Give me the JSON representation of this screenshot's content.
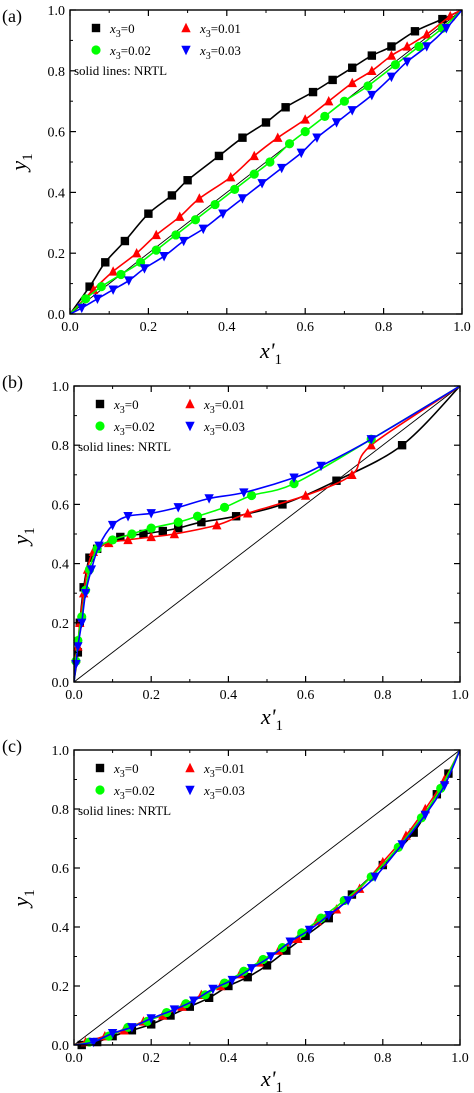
{
  "chart_data": [
    {
      "panel_label": "(a)",
      "type": "scatter",
      "xlabel": "x'1",
      "ylabel": "y1",
      "xlim": [
        0.0,
        1.0
      ],
      "ylim": [
        0.0,
        1.0
      ],
      "x_ticks": [
        "0.0",
        "0.2",
        "0.4",
        "0.6",
        "0.8",
        "1.0"
      ],
      "y_ticks": [
        "0.0",
        "0.2",
        "0.4",
        "0.6",
        "0.8",
        "1.0"
      ],
      "legend_note": "solid lines:  NRTL",
      "diagonal": true,
      "series": [
        {
          "name": "x3=0",
          "sub": "3",
          "val": "=0",
          "marker": "square",
          "color": "#000000",
          "points": [
            [
              0.05,
              0.09
            ],
            [
              0.09,
              0.17
            ],
            [
              0.14,
              0.24
            ],
            [
              0.2,
              0.33
            ],
            [
              0.26,
              0.39
            ],
            [
              0.3,
              0.44
            ],
            [
              0.38,
              0.52
            ],
            [
              0.44,
              0.58
            ],
            [
              0.5,
              0.63
            ],
            [
              0.55,
              0.68
            ],
            [
              0.62,
              0.73
            ],
            [
              0.67,
              0.77
            ],
            [
              0.72,
              0.81
            ],
            [
              0.77,
              0.85
            ],
            [
              0.82,
              0.88
            ],
            [
              0.88,
              0.93
            ],
            [
              0.95,
              0.97
            ]
          ]
        },
        {
          "name": "x3=0.01",
          "sub": "3",
          "val": "=0.01",
          "marker": "triangle-up",
          "color": "#ff0000",
          "points": [
            [
              0.06,
              0.08
            ],
            [
              0.11,
              0.14
            ],
            [
              0.17,
              0.2
            ],
            [
              0.22,
              0.26
            ],
            [
              0.28,
              0.32
            ],
            [
              0.33,
              0.38
            ],
            [
              0.41,
              0.45
            ],
            [
              0.47,
              0.52
            ],
            [
              0.53,
              0.58
            ],
            [
              0.6,
              0.64
            ],
            [
              0.66,
              0.7
            ],
            [
              0.72,
              0.76
            ],
            [
              0.77,
              0.8
            ],
            [
              0.82,
              0.85
            ],
            [
              0.86,
              0.88
            ],
            [
              0.91,
              0.92
            ],
            [
              0.97,
              0.98
            ]
          ]
        },
        {
          "name": "x3=0.02",
          "sub": "3",
          "val": "=0.02",
          "marker": "circle",
          "color": "#00ff00",
          "points": [
            [
              0.04,
              0.05
            ],
            [
              0.08,
              0.09
            ],
            [
              0.13,
              0.13
            ],
            [
              0.18,
              0.17
            ],
            [
              0.22,
              0.21
            ],
            [
              0.27,
              0.26
            ],
            [
              0.32,
              0.31
            ],
            [
              0.37,
              0.36
            ],
            [
              0.42,
              0.41
            ],
            [
              0.47,
              0.46
            ],
            [
              0.51,
              0.5
            ],
            [
              0.56,
              0.56
            ],
            [
              0.6,
              0.6
            ],
            [
              0.65,
              0.65
            ],
            [
              0.7,
              0.7
            ],
            [
              0.76,
              0.75
            ],
            [
              0.83,
              0.82
            ],
            [
              0.89,
              0.88
            ],
            [
              0.95,
              0.94
            ]
          ]
        },
        {
          "name": "x3=0.03",
          "sub": "3",
          "val": "=0.03",
          "marker": "triangle-down",
          "color": "#0000ff",
          "points": [
            [
              0.03,
              0.02
            ],
            [
              0.07,
              0.05
            ],
            [
              0.11,
              0.08
            ],
            [
              0.15,
              0.11
            ],
            [
              0.19,
              0.15
            ],
            [
              0.24,
              0.19
            ],
            [
              0.29,
              0.24
            ],
            [
              0.34,
              0.28
            ],
            [
              0.39,
              0.33
            ],
            [
              0.44,
              0.38
            ],
            [
              0.49,
              0.43
            ],
            [
              0.54,
              0.48
            ],
            [
              0.59,
              0.53
            ],
            [
              0.63,
              0.58
            ],
            [
              0.68,
              0.63
            ],
            [
              0.72,
              0.67
            ],
            [
              0.77,
              0.72
            ],
            [
              0.82,
              0.78
            ],
            [
              0.86,
              0.83
            ],
            [
              0.91,
              0.88
            ],
            [
              0.96,
              0.94
            ]
          ]
        }
      ]
    },
    {
      "panel_label": "(b)",
      "type": "scatter",
      "xlabel": "x'1",
      "ylabel": "y1",
      "xlim": [
        0.0,
        1.0
      ],
      "ylim": [
        0.0,
        1.0
      ],
      "x_ticks": [
        "0.0",
        "0.2",
        "0.4",
        "0.6",
        "0.8",
        "1.0"
      ],
      "y_ticks": [
        "0.0",
        "0.2",
        "0.4",
        "0.6",
        "0.8",
        "1.0"
      ],
      "legend_note": "solid lines:  NRTL",
      "diagonal": true,
      "series": [
        {
          "name": "x3=0",
          "sub": "3",
          "val": "=0",
          "marker": "square",
          "color": "#000000",
          "points": [
            [
              0.01,
              0.1
            ],
            [
              0.015,
              0.2
            ],
            [
              0.025,
              0.32
            ],
            [
              0.04,
              0.42
            ],
            [
              0.06,
              0.45
            ],
            [
              0.12,
              0.49
            ],
            [
              0.18,
              0.5
            ],
            [
              0.23,
              0.51
            ],
            [
              0.27,
              0.52
            ],
            [
              0.33,
              0.54
            ],
            [
              0.42,
              0.56
            ],
            [
              0.54,
              0.6
            ],
            [
              0.68,
              0.68
            ],
            [
              0.85,
              0.8
            ]
          ]
        },
        {
          "name": "x3=0.01",
          "sub": "3",
          "val": "=0.01",
          "marker": "triangle-up",
          "color": "#ff0000",
          "points": [
            [
              0.005,
              0.08
            ],
            [
              0.01,
              0.12
            ],
            [
              0.015,
              0.2
            ],
            [
              0.025,
              0.3
            ],
            [
              0.035,
              0.38
            ],
            [
              0.05,
              0.44
            ],
            [
              0.09,
              0.47
            ],
            [
              0.14,
              0.48
            ],
            [
              0.2,
              0.49
            ],
            [
              0.26,
              0.5
            ],
            [
              0.37,
              0.53
            ],
            [
              0.45,
              0.57
            ],
            [
              0.6,
              0.63
            ],
            [
              0.72,
              0.7
            ],
            [
              0.77,
              0.8
            ]
          ]
        },
        {
          "name": "x3=0.02",
          "sub": "3",
          "val": "=0.02",
          "marker": "circle",
          "color": "#00ff00",
          "points": [
            [
              0.005,
              0.07
            ],
            [
              0.01,
              0.14
            ],
            [
              0.02,
              0.22
            ],
            [
              0.03,
              0.31
            ],
            [
              0.04,
              0.38
            ],
            [
              0.06,
              0.45
            ],
            [
              0.1,
              0.48
            ],
            [
              0.15,
              0.5
            ],
            [
              0.2,
              0.52
            ],
            [
              0.27,
              0.54
            ],
            [
              0.32,
              0.56
            ],
            [
              0.39,
              0.59
            ],
            [
              0.46,
              0.63
            ],
            [
              0.57,
              0.67
            ],
            [
              0.77,
              0.82
            ]
          ]
        },
        {
          "name": "x3=0.03",
          "sub": "3",
          "val": "=0.03",
          "marker": "triangle-down",
          "color": "#0000ff",
          "points": [
            [
              0.005,
              0.06
            ],
            [
              0.01,
              0.12
            ],
            [
              0.02,
              0.2
            ],
            [
              0.03,
              0.3
            ],
            [
              0.045,
              0.38
            ],
            [
              0.065,
              0.46
            ],
            [
              0.1,
              0.53
            ],
            [
              0.14,
              0.56
            ],
            [
              0.2,
              0.57
            ],
            [
              0.27,
              0.59
            ],
            [
              0.35,
              0.62
            ],
            [
              0.44,
              0.64
            ],
            [
              0.57,
              0.69
            ],
            [
              0.64,
              0.73
            ],
            [
              0.77,
              0.82
            ]
          ]
        }
      ]
    },
    {
      "panel_label": "(c)",
      "type": "scatter",
      "xlabel": "x'1",
      "ylabel": "y1",
      "xlim": [
        0.0,
        1.0
      ],
      "ylim": [
        0.0,
        1.0
      ],
      "x_ticks": [
        "0.0",
        "0.2",
        "0.4",
        "0.6",
        "0.8",
        "1.0"
      ],
      "y_ticks": [
        "0.0",
        "0.2",
        "0.4",
        "0.6",
        "0.8",
        "1.0"
      ],
      "legend_note": "solid lines:  NRTL",
      "diagonal": true,
      "series": [
        {
          "name": "x3=0",
          "sub": "3",
          "val": "=0",
          "marker": "square",
          "color": "#000000",
          "points": [
            [
              0.02,
              0.0
            ],
            [
              0.06,
              0.01
            ],
            [
              0.1,
              0.03
            ],
            [
              0.15,
              0.05
            ],
            [
              0.2,
              0.07
            ],
            [
              0.25,
              0.1
            ],
            [
              0.3,
              0.13
            ],
            [
              0.35,
              0.16
            ],
            [
              0.4,
              0.2
            ],
            [
              0.45,
              0.23
            ],
            [
              0.5,
              0.27
            ],
            [
              0.55,
              0.32
            ],
            [
              0.6,
              0.37
            ],
            [
              0.66,
              0.43
            ],
            [
              0.72,
              0.51
            ],
            [
              0.8,
              0.61
            ],
            [
              0.88,
              0.72
            ],
            [
              0.94,
              0.85
            ],
            [
              0.97,
              0.92
            ]
          ]
        },
        {
          "name": "x3=0.01",
          "sub": "3",
          "val": "=0.01",
          "marker": "triangle-up",
          "color": "#ff0000",
          "points": [
            [
              0.03,
              0.01
            ],
            [
              0.08,
              0.03
            ],
            [
              0.13,
              0.05
            ],
            [
              0.18,
              0.08
            ],
            [
              0.23,
              0.1
            ],
            [
              0.28,
              0.13
            ],
            [
              0.33,
              0.17
            ],
            [
              0.38,
              0.2
            ],
            [
              0.43,
              0.24
            ],
            [
              0.48,
              0.28
            ],
            [
              0.53,
              0.32
            ],
            [
              0.58,
              0.36
            ],
            [
              0.63,
              0.42
            ],
            [
              0.68,
              0.46
            ],
            [
              0.74,
              0.53
            ],
            [
              0.8,
              0.62
            ],
            [
              0.86,
              0.71
            ],
            [
              0.91,
              0.8
            ],
            [
              0.96,
              0.9
            ]
          ]
        },
        {
          "name": "x3=0.02",
          "sub": "3",
          "val": "=0.02",
          "marker": "circle",
          "color": "#00ff00",
          "points": [
            [
              0.04,
              0.01
            ],
            [
              0.09,
              0.03
            ],
            [
              0.14,
              0.06
            ],
            [
              0.19,
              0.08
            ],
            [
              0.24,
              0.11
            ],
            [
              0.29,
              0.14
            ],
            [
              0.34,
              0.17
            ],
            [
              0.39,
              0.21
            ],
            [
              0.44,
              0.25
            ],
            [
              0.49,
              0.29
            ],
            [
              0.54,
              0.33
            ],
            [
              0.59,
              0.38
            ],
            [
              0.64,
              0.43
            ],
            [
              0.7,
              0.49
            ],
            [
              0.77,
              0.57
            ],
            [
              0.84,
              0.67
            ],
            [
              0.9,
              0.77
            ],
            [
              0.95,
              0.87
            ]
          ]
        },
        {
          "name": "x3=0.03",
          "sub": "3",
          "val": "=0.03",
          "marker": "triangle-down",
          "color": "#0000ff",
          "points": [
            [
              0.05,
              0.01
            ],
            [
              0.1,
              0.04
            ],
            [
              0.15,
              0.06
            ],
            [
              0.2,
              0.09
            ],
            [
              0.26,
              0.12
            ],
            [
              0.31,
              0.15
            ],
            [
              0.36,
              0.19
            ],
            [
              0.41,
              0.22
            ],
            [
              0.46,
              0.26
            ],
            [
              0.51,
              0.3
            ],
            [
              0.56,
              0.35
            ],
            [
              0.61,
              0.39
            ],
            [
              0.66,
              0.44
            ],
            [
              0.71,
              0.49
            ],
            [
              0.78,
              0.57
            ],
            [
              0.85,
              0.68
            ],
            [
              0.91,
              0.78
            ],
            [
              0.96,
              0.88
            ]
          ]
        }
      ]
    }
  ]
}
